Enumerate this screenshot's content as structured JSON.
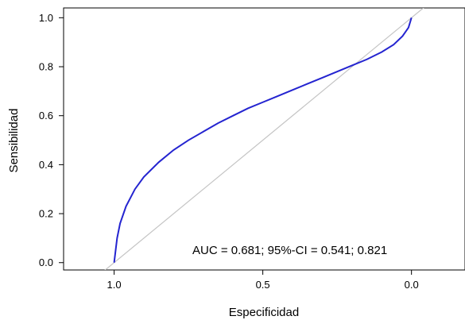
{
  "chart_data": {
    "type": "line",
    "title": "",
    "xlabel": "Especificidad",
    "ylabel": "Sensibilidad",
    "x_reversed": true,
    "xlim": [
      1.17,
      -0.18
    ],
    "ylim": [
      -0.03,
      1.04
    ],
    "x_ticks": [
      {
        "value": 1.0,
        "label": "1.0"
      },
      {
        "value": 0.5,
        "label": "0.5"
      },
      {
        "value": 0.0,
        "label": "0.0"
      }
    ],
    "y_ticks": [
      {
        "value": 0.0,
        "label": "0.0"
      },
      {
        "value": 0.2,
        "label": "0.2"
      },
      {
        "value": 0.4,
        "label": "0.4"
      },
      {
        "value": 0.6,
        "label": "0.6"
      },
      {
        "value": 0.8,
        "label": "0.8"
      },
      {
        "value": 1.0,
        "label": "1.0"
      }
    ],
    "grid": false,
    "series": [
      {
        "color": "#2424d0",
        "x": [
          1.0,
          0.99,
          0.98,
          0.96,
          0.93,
          0.9,
          0.85,
          0.8,
          0.75,
          0.7,
          0.65,
          0.6,
          0.55,
          0.5,
          0.45,
          0.4,
          0.35,
          0.3,
          0.25,
          0.2,
          0.15,
          0.1,
          0.06,
          0.03,
          0.01,
          0.0
        ],
        "y": [
          0.0,
          0.1,
          0.16,
          0.23,
          0.3,
          0.35,
          0.41,
          0.46,
          0.5,
          0.535,
          0.57,
          0.6,
          0.63,
          0.655,
          0.68,
          0.705,
          0.73,
          0.755,
          0.78,
          0.805,
          0.83,
          0.86,
          0.89,
          0.925,
          0.96,
          1.0
        ]
      }
    ],
    "reference_line": {
      "color": "#c4c4c4",
      "x": [
        1.0,
        0.0
      ],
      "y": [
        0.0,
        1.0
      ]
    },
    "annotation": "AUC = 0.681; 95%-CI = 0.541; 0.821"
  }
}
